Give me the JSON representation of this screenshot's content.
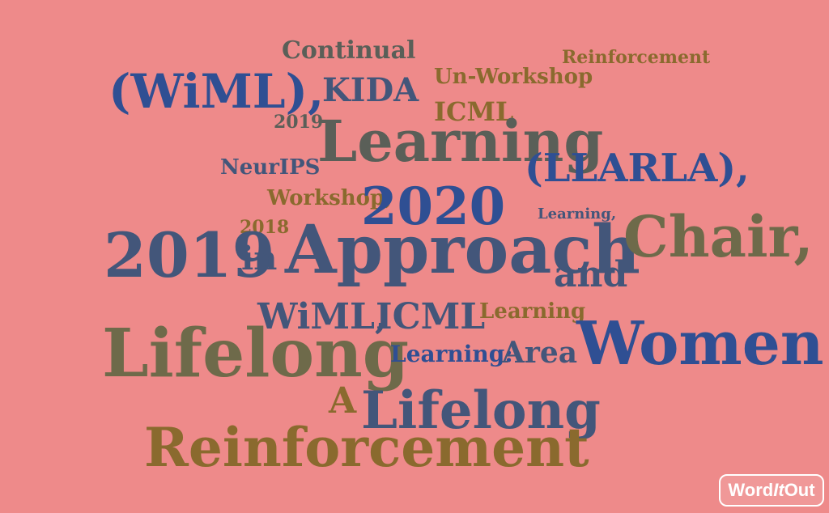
{
  "words": [
    {
      "text": "(WiML),",
      "color": "#2f4f93"
    },
    {
      "text": "Continual",
      "color": "#5a5f58"
    },
    {
      "text": "KIDA",
      "color": "#43567a"
    },
    {
      "text": "Un-Workshop",
      "color": "#8a6a2e"
    },
    {
      "text": "Reinforcement",
      "color": "#8a6a2e"
    },
    {
      "text": "ICML",
      "color": "#8a6a2e"
    },
    {
      "text": "2019",
      "color": "#5a5f58"
    },
    {
      "text": "Learning",
      "color": "#5a5f58"
    },
    {
      "text": "NeurIPS",
      "color": "#43567a"
    },
    {
      "text": "(LLARLA),",
      "color": "#2f4f93"
    },
    {
      "text": "Workshop,",
      "color": "#8a6a2e"
    },
    {
      "text": "2020",
      "color": "#2f4f93"
    },
    {
      "text": "Learning,",
      "color": "#43567a"
    },
    {
      "text": "2018",
      "color": "#8a6a2e"
    },
    {
      "text": "2019",
      "color": "#43567a"
    },
    {
      "text": "in",
      "color": "#43567a"
    },
    {
      "text": "Approach",
      "color": "#43567a"
    },
    {
      "text": "Chair,",
      "color": "#6e6a4a"
    },
    {
      "text": "and",
      "color": "#43567a"
    },
    {
      "text": "WiML,",
      "color": "#43567a"
    },
    {
      "text": "ICML",
      "color": "#43567a"
    },
    {
      "text": "Learning",
      "color": "#8a6a2e"
    },
    {
      "text": "Women",
      "color": "#2f4f93"
    },
    {
      "text": "Lifelong",
      "color": "#6e6a4a"
    },
    {
      "text": "Learning:",
      "color": "#2f4f93"
    },
    {
      "text": "Area",
      "color": "#43567a"
    },
    {
      "text": "A",
      "color": "#8a6a2e"
    },
    {
      "text": "Lifelong",
      "color": "#43567a"
    },
    {
      "text": "Reinforcement",
      "color": "#8a6a2e"
    }
  ],
  "badge": {
    "word": "Word",
    "it": "It",
    "out": "Out"
  }
}
